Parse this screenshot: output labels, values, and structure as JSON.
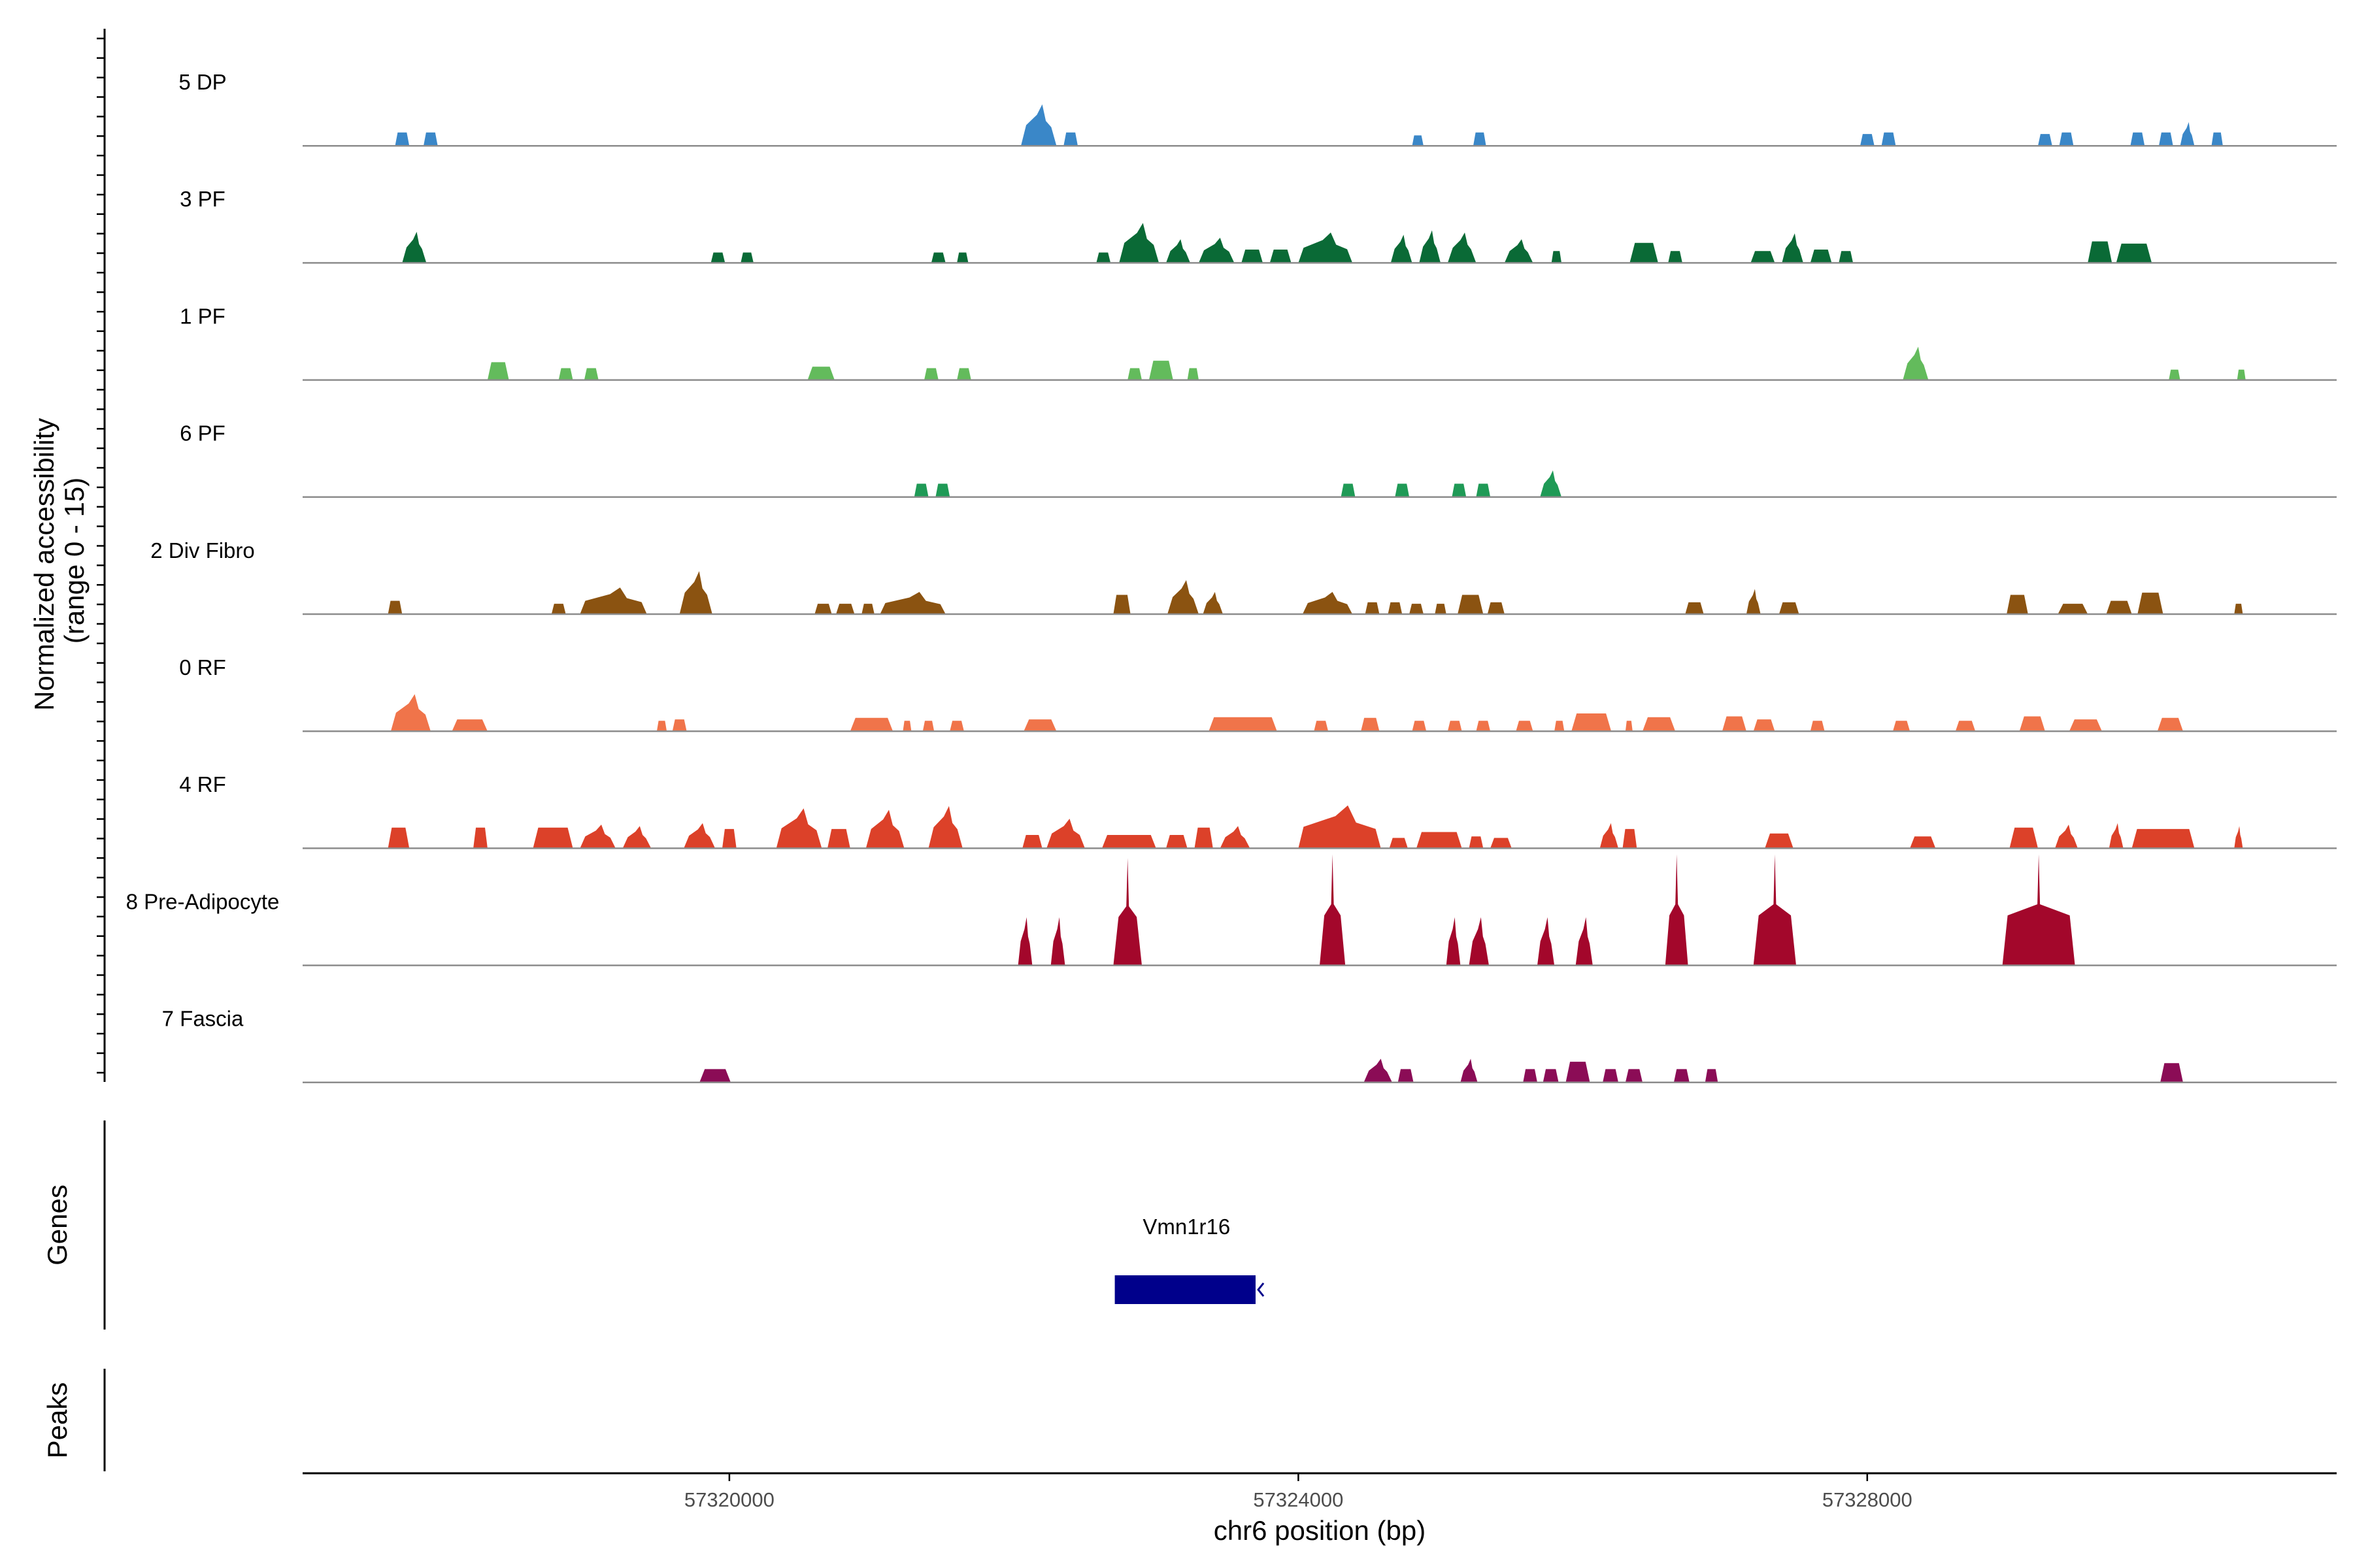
{
  "chart_data": {
    "type": "coverage",
    "ylabel_line1": "Normalized accessibility",
    "ylabel_line2": "(range 0 - 15)",
    "ylim": [
      0,
      15
    ],
    "xlabel": "chr6 position (bp)",
    "xlim": [
      57317000,
      57331300
    ],
    "xticks": [
      57320000,
      57324000,
      57328000
    ],
    "xtick_labels": [
      "57320000",
      "57324000",
      "57328000"
    ],
    "tracks": [
      {
        "name": "5 DP",
        "color": "#3a87c8",
        "peaks": [
          [
            57317650,
            57317750,
            1.8
          ],
          [
            57317850,
            57317950,
            1.8
          ],
          [
            57322050,
            57322300,
            5.6
          ],
          [
            57322350,
            57322450,
            1.8
          ],
          [
            57324800,
            57324880,
            1.4
          ],
          [
            57325230,
            57325320,
            1.8
          ],
          [
            57327950,
            57328050,
            1.6
          ],
          [
            57328100,
            57328200,
            1.8
          ],
          [
            57329200,
            57329300,
            1.6
          ],
          [
            57329350,
            57329450,
            1.8
          ],
          [
            57329850,
            57329950,
            1.8
          ],
          [
            57330050,
            57330150,
            1.8
          ],
          [
            57330200,
            57330300,
            3.2
          ],
          [
            57330420,
            57330500,
            1.8
          ]
        ]
      },
      {
        "name": "3 PF",
        "color": "#0a6a36",
        "peaks": [
          [
            57317700,
            57317870,
            4.2
          ],
          [
            57319870,
            57319970,
            1.4
          ],
          [
            57320080,
            57320170,
            1.4
          ],
          [
            57321420,
            57321520,
            1.4
          ],
          [
            57321600,
            57321680,
            1.4
          ],
          [
            57322580,
            57322680,
            1.4
          ],
          [
            57322740,
            57323020,
            5.4
          ],
          [
            57323070,
            57323240,
            3.2
          ],
          [
            57323300,
            57323550,
            3.4
          ],
          [
            57323600,
            57323750,
            1.8
          ],
          [
            57323800,
            57323950,
            1.8
          ],
          [
            57324000,
            57324380,
            4.1
          ],
          [
            57324650,
            57324800,
            3.8
          ],
          [
            57324850,
            57325000,
            4.4
          ],
          [
            57325050,
            57325250,
            4.1
          ],
          [
            57325450,
            57325650,
            3.2
          ],
          [
            57325780,
            57325850,
            1.6
          ],
          [
            57326330,
            57326530,
            2.7
          ],
          [
            57326600,
            57326700,
            1.6
          ],
          [
            57327180,
            57327350,
            1.6
          ],
          [
            57327400,
            57327550,
            4.0
          ],
          [
            57327600,
            57327750,
            1.8
          ],
          [
            57327800,
            57327900,
            1.6
          ],
          [
            57329550,
            57329720,
            2.9
          ],
          [
            57329750,
            57330000,
            2.6
          ]
        ]
      },
      {
        "name": "1 PF",
        "color": "#63bb5c",
        "peaks": [
          [
            57318300,
            57318450,
            2.4
          ],
          [
            57318800,
            57318900,
            1.6
          ],
          [
            57318980,
            57319080,
            1.6
          ],
          [
            57320550,
            57320740,
            1.8
          ],
          [
            57321370,
            57321470,
            1.6
          ],
          [
            57321600,
            57321700,
            1.6
          ],
          [
            57322800,
            57322900,
            1.6
          ],
          [
            57322950,
            57323120,
            2.6
          ],
          [
            57323220,
            57323300,
            1.6
          ],
          [
            57328250,
            57328430,
            4.5
          ],
          [
            57330120,
            57330200,
            1.4
          ],
          [
            57330600,
            57330660,
            1.4
          ]
        ]
      },
      {
        "name": "6 PF",
        "color": "#1f9a56",
        "peaks": [
          [
            57321300,
            57321400,
            1.8
          ],
          [
            57321450,
            57321550,
            1.8
          ],
          [
            57324300,
            57324400,
            1.8
          ],
          [
            57324680,
            57324780,
            1.8
          ],
          [
            57325080,
            57325180,
            1.8
          ],
          [
            57325250,
            57325350,
            1.8
          ],
          [
            57325700,
            57325850,
            3.6
          ]
        ]
      },
      {
        "name": "2 Div Fibro",
        "color": "#8b5311",
        "peaks": [
          [
            57317600,
            57317700,
            1.8
          ],
          [
            57318750,
            57318850,
            1.4
          ],
          [
            57318950,
            57319420,
            3.6
          ],
          [
            57319650,
            57319880,
            5.8
          ],
          [
            57320600,
            57320720,
            1.4
          ],
          [
            57320750,
            57320880,
            1.4
          ],
          [
            57320930,
            57321020,
            1.4
          ],
          [
            57321060,
            57321520,
            3.0
          ],
          [
            57322700,
            57322820,
            2.6
          ],
          [
            57323080,
            57323300,
            4.6
          ],
          [
            57323330,
            57323470,
            3.0
          ],
          [
            57324030,
            57324380,
            3.0
          ],
          [
            57324470,
            57324570,
            1.6
          ],
          [
            57324630,
            57324730,
            1.6
          ],
          [
            57324780,
            57324880,
            1.4
          ],
          [
            57324960,
            57325040,
            1.4
          ],
          [
            57325120,
            57325300,
            2.6
          ],
          [
            57325330,
            57325450,
            1.6
          ],
          [
            57326720,
            57326850,
            1.6
          ],
          [
            57327150,
            57327250,
            3.4
          ],
          [
            57327380,
            57327520,
            1.6
          ],
          [
            57328980,
            57329130,
            2.6
          ],
          [
            57329340,
            57329550,
            1.4
          ],
          [
            57329680,
            57329860,
            1.8
          ],
          [
            57329900,
            57330080,
            2.9
          ],
          [
            57330580,
            57330640,
            1.4
          ]
        ]
      },
      {
        "name": "0 RF",
        "color": "#f0744a",
        "peaks": [
          [
            57317620,
            57317900,
            5.0
          ],
          [
            57318050,
            57318300,
            1.6
          ],
          [
            57319490,
            57319560,
            1.4
          ],
          [
            57319600,
            57319700,
            1.6
          ],
          [
            57320850,
            57321150,
            1.8
          ],
          [
            57321220,
            57321280,
            1.4
          ],
          [
            57321360,
            57321440,
            1.4
          ],
          [
            57321550,
            57321650,
            1.4
          ],
          [
            57322070,
            57322300,
            1.6
          ],
          [
            57323370,
            57323850,
            1.9
          ],
          [
            57324110,
            57324210,
            1.4
          ],
          [
            57324440,
            57324570,
            1.8
          ],
          [
            57324800,
            57324900,
            1.4
          ],
          [
            57325050,
            57325150,
            1.4
          ],
          [
            57325250,
            57325350,
            1.4
          ],
          [
            57325530,
            57325650,
            1.4
          ],
          [
            57325800,
            57325870,
            1.4
          ],
          [
            57325920,
            57326200,
            2.4
          ],
          [
            57326300,
            57326350,
            1.4
          ],
          [
            57326420,
            57326650,
            1.9
          ],
          [
            57326980,
            57327150,
            2.0
          ],
          [
            57327200,
            57327350,
            1.6
          ],
          [
            57327600,
            57327700,
            1.4
          ],
          [
            57328180,
            57328300,
            1.4
          ],
          [
            57328620,
            57328760,
            1.4
          ],
          [
            57329070,
            57329250,
            2.0
          ],
          [
            57329420,
            57329650,
            1.6
          ],
          [
            57330040,
            57330220,
            1.8
          ]
        ]
      },
      {
        "name": "4 RF",
        "color": "#dc4129",
        "peaks": [
          [
            57317600,
            57317750,
            2.8
          ],
          [
            57318200,
            57318300,
            2.8
          ],
          [
            57318620,
            57318900,
            2.8
          ],
          [
            57318950,
            57319200,
            3.2
          ],
          [
            57319250,
            57319450,
            3.0
          ],
          [
            57319680,
            57319900,
            3.4
          ],
          [
            57319950,
            57320050,
            2.6
          ],
          [
            57320330,
            57320650,
            5.4
          ],
          [
            57320690,
            57320850,
            2.6
          ],
          [
            57320960,
            57321230,
            5.2
          ],
          [
            57321400,
            57321640,
            5.7
          ],
          [
            57322060,
            57322200,
            1.8
          ],
          [
            57322230,
            57322500,
            4.0
          ],
          [
            57322620,
            57323000,
            1.8
          ],
          [
            57323070,
            57323220,
            1.8
          ],
          [
            57323270,
            57323400,
            2.8
          ],
          [
            57323450,
            57323660,
            3.0
          ],
          [
            57324000,
            57324580,
            5.8
          ],
          [
            57324640,
            57324770,
            1.4
          ],
          [
            57324830,
            57325150,
            2.2
          ],
          [
            57325200,
            57325300,
            1.6
          ],
          [
            57325350,
            57325500,
            1.4
          ],
          [
            57326120,
            57326250,
            3.4
          ],
          [
            57326280,
            57326380,
            2.6
          ],
          [
            57327280,
            57327480,
            2.0
          ],
          [
            57328300,
            57328480,
            1.6
          ],
          [
            57329000,
            57329200,
            2.8
          ],
          [
            57329320,
            57329480,
            3.2
          ],
          [
            57329700,
            57329800,
            3.4
          ],
          [
            57329860,
            57330300,
            2.6
          ],
          [
            57330580,
            57330640,
            3.0
          ]
        ]
      },
      {
        "name": "8 Pre-Adipocyte",
        "color": "#a3072b",
        "peaks": [
          [
            57322030,
            57322130,
            6.5
          ],
          [
            57322260,
            57322360,
            6.5
          ],
          [
            57322700,
            57322900,
            14.5
          ],
          [
            57324150,
            57324330,
            15.0
          ],
          [
            57325040,
            57325140,
            6.5
          ],
          [
            57325200,
            57325340,
            6.5
          ],
          [
            57325680,
            57325800,
            6.5
          ],
          [
            57325950,
            57326070,
            6.5
          ],
          [
            57326580,
            57326740,
            15.0
          ],
          [
            57327200,
            57327500,
            15.0
          ],
          [
            57328950,
            57329460,
            15.0
          ]
        ]
      },
      {
        "name": "7 Fascia",
        "color": "#8b0c56",
        "peaks": [
          [
            57319790,
            57320010,
            1.8
          ],
          [
            57324460,
            57324660,
            3.2
          ],
          [
            57324700,
            57324810,
            1.8
          ],
          [
            57325140,
            57325260,
            3.2
          ],
          [
            57325580,
            57325680,
            1.8
          ],
          [
            57325720,
            57325830,
            1.8
          ],
          [
            57325880,
            57326050,
            2.8
          ],
          [
            57326140,
            57326250,
            1.8
          ],
          [
            57326300,
            57326420,
            1.8
          ],
          [
            57326640,
            57326750,
            1.8
          ],
          [
            57326860,
            57326950,
            1.8
          ],
          [
            57330060,
            57330220,
            2.6
          ]
        ]
      }
    ],
    "genes_label": "Genes",
    "peaks_label": "Peaks",
    "genes": [
      {
        "name": "Vmn1r16",
        "start": 57322710,
        "end": 57323700,
        "strand": "-",
        "color": "#00008b"
      }
    ]
  }
}
